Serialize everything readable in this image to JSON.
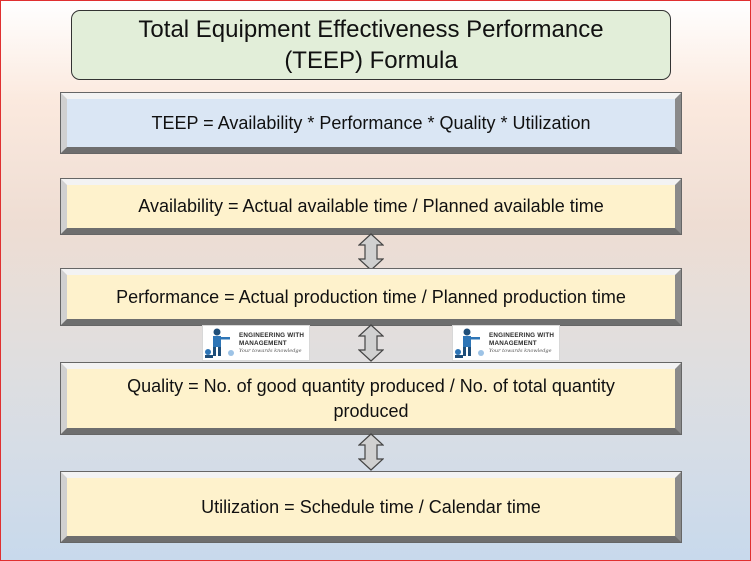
{
  "title": {
    "line1": "Total Equipment Effectiveness Performance",
    "line2": "(TEEP) Formula"
  },
  "formulas": {
    "teep": "TEEP = Availability * Performance * Quality * Utilization",
    "availability": "Availability = Actual available time / Planned available time",
    "performance": "Performance = Actual production time / Planned production time",
    "quality": "Quality = No. of good quantity produced / No. of total quantity produced",
    "utilization": "Utilization = Schedule time / Calendar time"
  },
  "logo": {
    "line1": "ENGINEERING WITH",
    "line2": "MANAGEMENT",
    "tagline": "Your towards knowledge"
  },
  "colors": {
    "title_fill": "#e2eed9",
    "teep_fill": "#dae6f4",
    "formula_fill": "#fef2cc",
    "arrow_fill": "#d0d0d0"
  }
}
